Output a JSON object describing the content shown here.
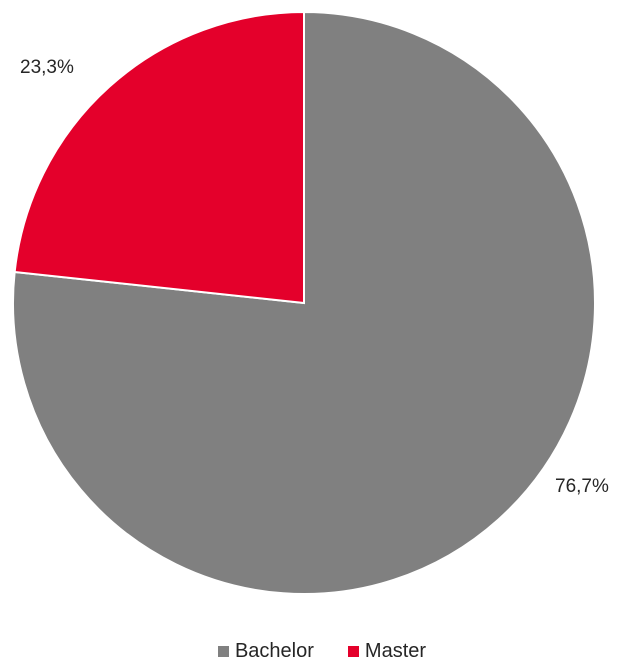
{
  "chart_data": {
    "type": "pie",
    "title": "",
    "categories": [
      "Bachelor",
      "Master"
    ],
    "values": [
      76.7,
      23.3
    ],
    "labels": [
      "76,7%",
      "23,3%"
    ],
    "colors": [
      "#808080",
      "#e4002b"
    ],
    "legend": "bottom",
    "start_angle": "12 o'clock",
    "direction": "clockwise"
  }
}
